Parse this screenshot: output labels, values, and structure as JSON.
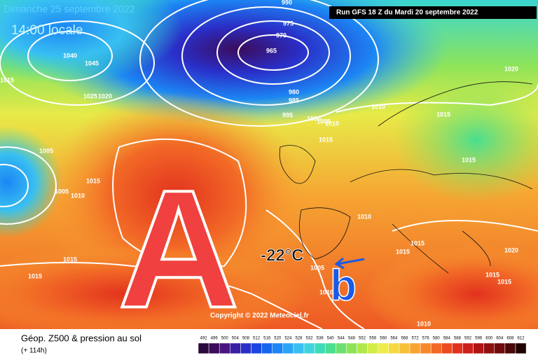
{
  "header": {
    "date": "Dimanche 25 septembre 2022",
    "time": "14:00 locale",
    "run": "Run GFS 18 Z du Mardi 20 septembre 2022"
  },
  "map": {
    "high_label": "A",
    "low_label": "b",
    "temperature": "-22°C",
    "copyright": "Copyright © 2022 Meteociel.fr",
    "isobars": [
      990,
      975,
      970,
      965,
      980,
      985,
      995,
      1000,
      1005,
      1010,
      1015,
      1010,
      1015,
      1020,
      1015,
      1040,
      1045,
      1025,
      1020,
      1015,
      1005,
      1015,
      1010,
      1005,
      1015,
      1015,
      1010,
      1015,
      1015,
      1020,
      1015,
      1015,
      1005,
      1010,
      1010
    ]
  },
  "legend": {
    "title": "Géop. Z500 & pression au sol",
    "lead": "(+ 114h)",
    "values": [
      492,
      496,
      500,
      504,
      508,
      512,
      516,
      520,
      524,
      528,
      532,
      536,
      540,
      544,
      548,
      552,
      556,
      560,
      564,
      568,
      572,
      576,
      580,
      584,
      588,
      592,
      596,
      600,
      604,
      608,
      612
    ],
    "colors": [
      "#2a0a3a",
      "#3b0c5a",
      "#4b1580",
      "#3a1fa5",
      "#2a2ec8",
      "#1c46e0",
      "#1466ee",
      "#1c86f4",
      "#2aa4f6",
      "#38bff2",
      "#3fd3e0",
      "#3cdcb8",
      "#4ade90",
      "#6ae070",
      "#8ce456",
      "#b0e84a",
      "#d2ec48",
      "#eeec4a",
      "#f6d840",
      "#f8c03a",
      "#f8a432",
      "#f6882c",
      "#f26a26",
      "#ec4c22",
      "#e2321e",
      "#cc2018",
      "#b01414",
      "#901010",
      "#700c0c",
      "#4a0808",
      "#200404"
    ]
  }
}
